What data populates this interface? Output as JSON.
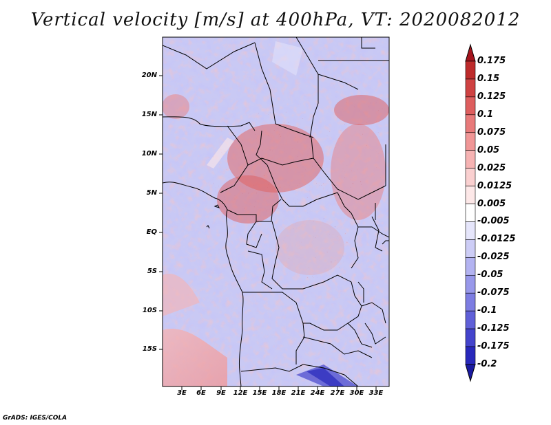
{
  "title": "Vertical velocity [m/s] at 400hPa, VT: 2020082012",
  "y_axis_labels": [
    "20N",
    "15N",
    "10N",
    "5N",
    "EQ",
    "5S",
    "10S",
    "15S"
  ],
  "x_axis_labels": [
    "3E",
    "6E",
    "9E",
    "12E",
    "15E",
    "18E",
    "21E",
    "24E",
    "27E",
    "30E",
    "33E"
  ],
  "colorbar": {
    "labels": [
      "0.175",
      "0.15",
      "0.125",
      "0.1",
      "0.075",
      "0.05",
      "0.025",
      "0.0125",
      "0.005",
      "-0.005",
      "-0.0125",
      "-0.025",
      "-0.05",
      "-0.075",
      "-0.1",
      "-0.125",
      "-0.175",
      "-0.2"
    ],
    "colors": [
      "#a4141d",
      "#bd2b2b",
      "#cf4242",
      "#de5e5e",
      "#e87a7a",
      "#f09696",
      "#f6b3b3",
      "#fad0d0",
      "#fde8e8",
      "#ffffff",
      "#e6e6fb",
      "#cdcdf6",
      "#b3b3f1",
      "#9898ea",
      "#7d7de2",
      "#6060d8",
      "#4444cc",
      "#2828bb",
      "#1a1aa0"
    ]
  },
  "credit": "GrADS: IGES/COLA"
}
